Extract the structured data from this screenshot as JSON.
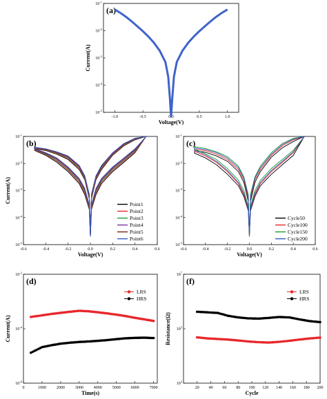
{
  "chart_data": [
    {
      "type": "line",
      "panel_label": "(a)",
      "xlabel": "Voltage(V)",
      "ylabel": "Current(A)",
      "xlim": [
        -1.2,
        1.2
      ],
      "ylim_log10": [
        -5,
        -1
      ],
      "y_scale": "log",
      "x_ticks": [
        -1.0,
        -0.5,
        0.0,
        0.5,
        1.0
      ],
      "x_tick_labels": [
        "-1.0",
        "-0.5",
        "0.0",
        "0.5",
        "1.0"
      ],
      "y_tick_labels": [
        "10^-1",
        "10^-2",
        "10^-3",
        "10^-4",
        "10^-5"
      ],
      "legend": "none",
      "series": [
        {
          "color": "#3f63c9",
          "x": [
            -1.0,
            -0.9,
            -0.8,
            -0.7,
            -0.6,
            -0.5,
            -0.4,
            -0.3,
            -0.2,
            -0.1,
            -0.05,
            -0.02,
            0.0,
            0.02,
            0.05,
            0.1,
            0.2,
            0.3,
            0.4,
            0.5,
            0.6,
            0.7,
            0.8,
            0.9,
            1.0
          ],
          "y": [
            0.06,
            0.045,
            0.032,
            0.022,
            0.0145,
            0.0095,
            0.006,
            0.0035,
            0.0018,
            0.0007,
            0.0002,
            3e-05,
            6.6e-06,
            3e-05,
            0.0002,
            0.0007,
            0.0018,
            0.0035,
            0.006,
            0.0095,
            0.0145,
            0.022,
            0.032,
            0.045,
            0.06
          ]
        }
      ]
    },
    {
      "type": "line",
      "panel_label": "(b)",
      "xlabel": "Voltage(V)",
      "ylabel": "Current(A)",
      "xlim": [
        -0.6,
        0.6
      ],
      "ylim_log10": [
        -5,
        -1
      ],
      "y_scale": "log",
      "x_ticks": [
        -0.6,
        -0.4,
        -0.2,
        0.0,
        0.2,
        0.4,
        0.6
      ],
      "x_tick_labels": [
        "-0.6",
        "-0.4",
        "-0.2",
        "0.0",
        "0.2",
        "0.4",
        "0.6"
      ],
      "y_tick_labels": [
        "10^-1",
        "10^-2",
        "10^-3",
        "10^-4",
        "10^-5"
      ],
      "legend": "bottom-right",
      "loop_x": [
        -0.5,
        -0.4,
        -0.3,
        -0.2,
        -0.1,
        -0.05,
        -0.01,
        0.0,
        0.01,
        0.05,
        0.1,
        0.2,
        0.3,
        0.4,
        0.5
      ],
      "series": [
        {
          "name": "Point1",
          "color": "#000000",
          "upper": [
            0.035,
            0.03,
            0.022,
            0.014,
            0.006,
            0.0025,
            0.0005,
            2e-05,
            0.0005,
            0.0025,
            0.006,
            0.02,
            0.045,
            0.075,
            0.1
          ],
          "lower": [
            0.03,
            0.02,
            0.011,
            0.005,
            0.0018,
            0.0007,
            0.0002,
            2e-05,
            0.0002,
            0.0007,
            0.0018,
            0.005,
            0.011,
            0.025,
            0.1
          ]
        },
        {
          "name": "Point2",
          "color": "#e8262a",
          "upper": [
            0.036,
            0.031,
            0.023,
            0.015,
            0.0065,
            0.0027,
            0.00055,
            2e-05,
            0.00055,
            0.0027,
            0.0065,
            0.021,
            0.047,
            0.078,
            0.1
          ],
          "lower": [
            0.031,
            0.021,
            0.012,
            0.0055,
            0.002,
            0.0008,
            0.00022,
            2e-05,
            0.00022,
            0.0008,
            0.002,
            0.0055,
            0.012,
            0.027,
            0.1
          ]
        },
        {
          "name": "Point3",
          "color": "#1f9b31",
          "upper": [
            0.037,
            0.032,
            0.024,
            0.016,
            0.007,
            0.0029,
            0.0006,
            2e-05,
            0.0006,
            0.0029,
            0.007,
            0.022,
            0.049,
            0.08,
            0.1
          ],
          "lower": [
            0.032,
            0.022,
            0.013,
            0.006,
            0.0022,
            0.0009,
            0.00024,
            2e-05,
            0.00024,
            0.0009,
            0.0022,
            0.006,
            0.013,
            0.029,
            0.1
          ]
        },
        {
          "name": "Point4",
          "color": "#7d2fa4",
          "upper": [
            0.038,
            0.033,
            0.025,
            0.017,
            0.0075,
            0.0031,
            0.00065,
            2e-05,
            0.00065,
            0.0031,
            0.0075,
            0.023,
            0.051,
            0.082,
            0.1
          ],
          "lower": [
            0.033,
            0.023,
            0.014,
            0.0065,
            0.0024,
            0.001,
            0.00026,
            2e-05,
            0.00026,
            0.001,
            0.0024,
            0.0065,
            0.014,
            0.031,
            0.1
          ]
        },
        {
          "name": "Point5",
          "color": "#7b1e12",
          "upper": [
            0.039,
            0.034,
            0.026,
            0.018,
            0.008,
            0.0033,
            0.0007,
            2e-05,
            0.0007,
            0.0033,
            0.008,
            0.024,
            0.053,
            0.084,
            0.1
          ],
          "lower": [
            0.034,
            0.024,
            0.015,
            0.007,
            0.0026,
            0.0011,
            0.00028,
            2e-05,
            0.00028,
            0.0011,
            0.0026,
            0.007,
            0.015,
            0.033,
            0.1
          ]
        },
        {
          "name": "Point6",
          "color": "#2d57c2",
          "upper": [
            0.04,
            0.035,
            0.027,
            0.019,
            0.0085,
            0.0035,
            0.00075,
            2e-05,
            0.00075,
            0.0035,
            0.0085,
            0.025,
            0.055,
            0.086,
            0.1
          ],
          "lower": [
            0.035,
            0.025,
            0.016,
            0.0075,
            0.0028,
            0.0012,
            0.0003,
            2e-05,
            0.0003,
            0.0012,
            0.0028,
            0.0075,
            0.016,
            0.035,
            0.1
          ]
        }
      ]
    },
    {
      "type": "line",
      "panel_label": "(c)",
      "xlabel": "Voltage(V)",
      "ylabel": "",
      "xlim": [
        -0.6,
        0.6
      ],
      "ylim_log10": [
        -5,
        -1
      ],
      "y_scale": "log",
      "x_ticks": [
        -0.6,
        -0.4,
        -0.2,
        0.0,
        0.2,
        0.4,
        0.6
      ],
      "x_tick_labels": [
        "-0.6",
        "-0.4",
        "-0.2",
        "0.0",
        "0.2",
        "0.4",
        "0.6"
      ],
      "y_tick_labels": [
        "10^-1",
        "10^-2",
        "10^-3",
        "10^-4",
        "10^-5"
      ],
      "legend": "bottom-right",
      "loop_x": [
        -0.5,
        -0.4,
        -0.3,
        -0.2,
        -0.1,
        -0.05,
        -0.01,
        0.0,
        0.01,
        0.05,
        0.1,
        0.2,
        0.3,
        0.4,
        0.5
      ],
      "series": [
        {
          "name": "Cycle50",
          "color": "#000000",
          "upper": [
            0.03,
            0.026,
            0.019,
            0.012,
            0.005,
            0.002,
            0.0004,
            2e-05,
            0.0004,
            0.002,
            0.005,
            0.017,
            0.038,
            0.065,
            0.1
          ],
          "lower": [
            0.024,
            0.016,
            0.009,
            0.004,
            0.0015,
            0.0006,
            0.00018,
            2e-05,
            0.00018,
            0.0006,
            0.0015,
            0.004,
            0.009,
            0.02,
            0.1
          ]
        },
        {
          "name": "Cycle100",
          "color": "#e8262a",
          "upper": [
            0.034,
            0.03,
            0.022,
            0.014,
            0.006,
            0.0025,
            0.0005,
            2e-05,
            0.0005,
            0.0025,
            0.006,
            0.02,
            0.045,
            0.075,
            0.1
          ],
          "lower": [
            0.028,
            0.019,
            0.011,
            0.005,
            0.0018,
            0.0007,
            0.0002,
            2e-05,
            0.0002,
            0.0007,
            0.0018,
            0.005,
            0.011,
            0.025,
            0.1
          ]
        },
        {
          "name": "Cycle150",
          "color": "#1f9b31",
          "upper": [
            0.042,
            0.036,
            0.027,
            0.018,
            0.008,
            0.0032,
            0.0007,
            2e-05,
            0.0007,
            0.0032,
            0.008,
            0.025,
            0.055,
            0.085,
            0.1
          ],
          "lower": [
            0.034,
            0.023,
            0.014,
            0.0065,
            0.0024,
            0.001,
            0.00026,
            2e-05,
            0.00026,
            0.001,
            0.0024,
            0.0065,
            0.014,
            0.031,
            0.1
          ]
        },
        {
          "name": "Cycle200",
          "color": "#2d57c2",
          "upper": [
            0.038,
            0.033,
            0.025,
            0.016,
            0.007,
            0.0029,
            0.0006,
            2e-05,
            0.0006,
            0.0029,
            0.007,
            0.022,
            0.05,
            0.08,
            0.1
          ],
          "lower": [
            0.031,
            0.021,
            0.012,
            0.0055,
            0.002,
            0.0008,
            0.00022,
            2e-05,
            0.00022,
            0.0008,
            0.002,
            0.0055,
            0.012,
            0.027,
            0.1
          ]
        }
      ]
    },
    {
      "type": "scatter",
      "panel_label": "(d)",
      "xlabel": "Time(s)",
      "ylabel": "Current(A)",
      "xlim": [
        0,
        7200
      ],
      "ylim_log10": [
        -7,
        -2
      ],
      "y_scale": "log",
      "x_ticks": [
        0,
        1000,
        2000,
        3000,
        4000,
        5000,
        6000,
        7000
      ],
      "x_tick_labels": [
        "0",
        "1000",
        "2000",
        "3000",
        "4000",
        "5000",
        "6000",
        "7000"
      ],
      "y_tick_labels": [
        "10^-2",
        "10^-4",
        "10^-6"
      ],
      "legend": "top-right",
      "series": [
        {
          "name": "LRS",
          "color": "#e8262a",
          "x": [
            400,
            1000,
            1500,
            2000,
            2500,
            3000,
            3500,
            4000,
            4500,
            5000,
            5500,
            6000,
            6500,
            7000
          ],
          "y": [
            0.00011,
            0.00013,
            0.00015,
            0.00017,
            0.00019,
            0.00021,
            0.0002,
            0.00018,
            0.00016,
            0.00014,
            0.00012,
            0.0001,
            8.5e-05,
            7.2e-05
          ]
        },
        {
          "name": "HRS",
          "color": "#000000",
          "x": [
            400,
            1000,
            1500,
            2000,
            2500,
            3000,
            3500,
            4000,
            4500,
            5000,
            5500,
            6000,
            6500,
            7000
          ],
          "y": [
            2.5e-06,
            4.5e-06,
            5.5e-06,
            6.5e-06,
            7.2e-06,
            7.8e-06,
            8.2e-06,
            8.8e-06,
            9.5e-06,
            1.05e-05,
            1.15e-05,
            1.2e-05,
            1.22e-05,
            1.18e-05
          ]
        }
      ]
    },
    {
      "type": "scatter",
      "panel_label": "(f)",
      "xlabel": "Cycle",
      "ylabel": "Resistance(Ω)",
      "xlim": [
        0,
        200
      ],
      "ylim_log10": [
        3,
        7
      ],
      "y_scale": "log",
      "x_ticks": [
        20,
        40,
        60,
        80,
        100,
        120,
        140,
        160,
        180,
        200
      ],
      "x_tick_labels": [
        "20",
        "40",
        "60",
        "80",
        "100",
        "120",
        "140",
        "160",
        "180",
        "200"
      ],
      "y_tick_labels": [
        "10^7",
        "10^5",
        "10^3"
      ],
      "legend": "top-right",
      "series": [
        {
          "name": "LRS",
          "color": "#e8262a",
          "x": [
            20,
            35,
            50,
            65,
            80,
            95,
            110,
            125,
            140,
            155,
            170,
            185,
            200
          ],
          "y": [
            48000,
            44000,
            42000,
            40000,
            37000,
            34000,
            32000,
            31000,
            33000,
            36000,
            40000,
            44000,
            47000
          ]
        },
        {
          "name": "HRS",
          "color": "#000000",
          "x": [
            20,
            35,
            50,
            65,
            80,
            95,
            110,
            125,
            140,
            155,
            170,
            185,
            200
          ],
          "y": [
            420000,
            400000,
            380000,
            300000,
            260000,
            240000,
            235000,
            250000,
            270000,
            260000,
            220000,
            190000,
            175000
          ]
        }
      ]
    }
  ]
}
